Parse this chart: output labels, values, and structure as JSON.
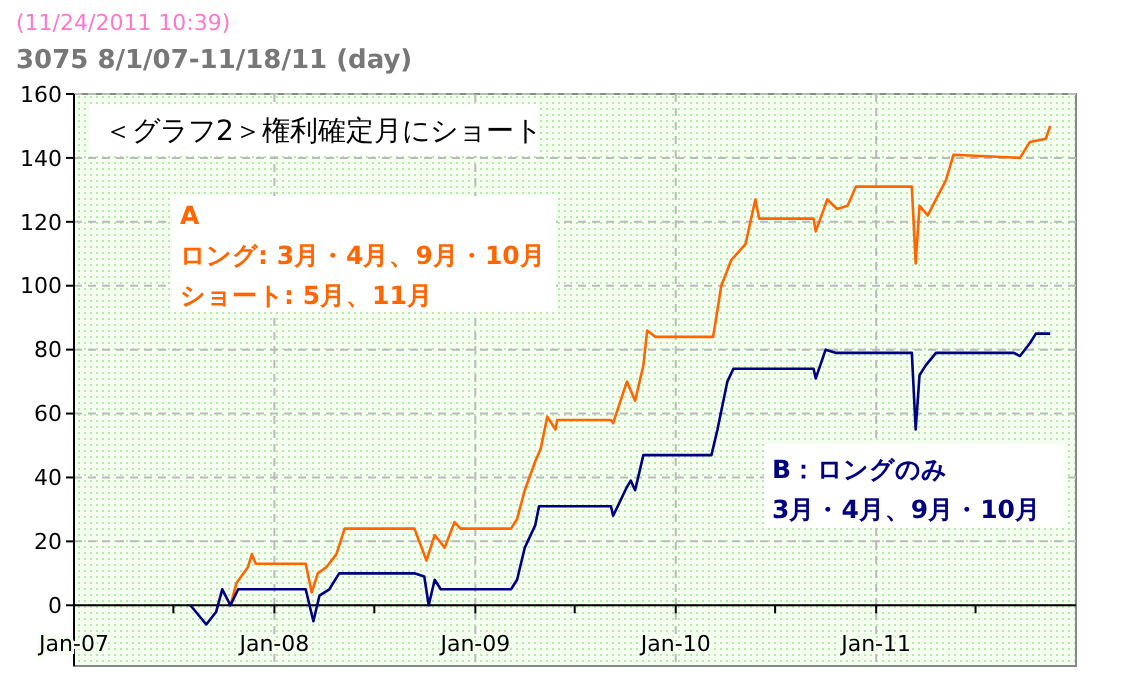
{
  "chart_data": {
    "type": "line",
    "title": "＜グラフ2＞権利確定月にショート",
    "subtitle": "3075 8/1/07-11/18/11 (day)",
    "annotations": [
      "(11/24/2011 10:39)",
      "ロング: 3月・4月、9月・10月",
      "ショート: 5月、11月",
      "3月・4月、9月・10月"
    ],
    "xlim": [
      "2007-01-01",
      "2011-12-31"
    ],
    "xticks": [
      {
        "value": "2007-01-01",
        "label": "Jan-07"
      },
      {
        "value": "2007-07-01",
        "label": null
      },
      {
        "value": "2008-01-01",
        "label": "Jan-08"
      },
      {
        "value": "2008-07-01",
        "label": null
      },
      {
        "value": "2009-01-01",
        "label": "Jan-09"
      },
      {
        "value": "2009-07-01",
        "label": null
      },
      {
        "value": "2010-01-01",
        "label": "Jan-10"
      },
      {
        "value": "2010-07-01",
        "label": null
      },
      {
        "value": "2011-01-01",
        "label": "Jan-11"
      },
      {
        "value": "2011-07-01",
        "label": null
      }
    ],
    "ylim": [
      -19,
      160
    ],
    "yticks": [
      0,
      20,
      40,
      60,
      80,
      100,
      120,
      140,
      160
    ],
    "grid": true,
    "marker": "none",
    "line_style": "solid",
    "series": [
      {
        "name": "A",
        "color": "#ff6600",
        "x": [
          "2007-10-13",
          "2007-10-24",
          "2007-11-14",
          "2007-11-21",
          "2007-11-28",
          "2008-02-27",
          "2008-03-09",
          "2008-03-20",
          "2008-04-05",
          "2008-04-23",
          "2008-05-08",
          "2008-09-12",
          "2008-10-04",
          "2008-10-19",
          "2008-11-06",
          "2008-11-24",
          "2008-12-05",
          "2009-03-07",
          "2009-03-18",
          "2009-04-01",
          "2009-04-20",
          "2009-04-30",
          "2009-05-12",
          "2009-05-27",
          "2009-05-30",
          "2009-09-05",
          "2009-09-09",
          "2009-10-04",
          "2009-10-19",
          "2009-11-03",
          "2009-11-10",
          "2009-11-25",
          "2010-03-10",
          "2010-03-25",
          "2010-04-12",
          "2010-05-08",
          "2010-05-26",
          "2010-06-02",
          "2010-09-09",
          "2010-09-13",
          "2010-10-04",
          "2010-10-22",
          "2010-11-10",
          "2010-11-25",
          "2011-03-07",
          "2011-03-14",
          "2011-03-21",
          "2011-04-05",
          "2011-04-20",
          "2011-05-08",
          "2011-05-22",
          "2011-09-20",
          "2011-10-08",
          "2011-11-06",
          "2011-11-14"
        ],
        "values": [
          0,
          7,
          12,
          16,
          13,
          13,
          4,
          10,
          12,
          16,
          24,
          24,
          14,
          22,
          18,
          26,
          24,
          24,
          27,
          36,
          45,
          49,
          59,
          55,
          58,
          58,
          57,
          70,
          64,
          75,
          86,
          84,
          84,
          100,
          108,
          113,
          127,
          121,
          121,
          117,
          127,
          124,
          125,
          131,
          131,
          107,
          125,
          122,
          127,
          133,
          141,
          140,
          145,
          146,
          150
        ]
      },
      {
        "name": "B：ロングのみ",
        "color": "#000080",
        "x": [
          "2007-08-01",
          "2007-08-30",
          "2007-09-17",
          "2007-09-28",
          "2007-10-13",
          "2007-10-27",
          "2008-02-27",
          "2008-03-12",
          "2008-03-23",
          "2008-04-10",
          "2008-04-28",
          "2008-09-12",
          "2008-09-30",
          "2008-10-08",
          "2008-10-19",
          "2008-10-30",
          "2009-03-07",
          "2009-03-18",
          "2009-04-01",
          "2009-04-20",
          "2009-04-27",
          "2009-09-05",
          "2009-09-09",
          "2009-10-04",
          "2009-10-11",
          "2009-10-19",
          "2009-11-03",
          "2010-03-07",
          "2010-03-18",
          "2010-04-05",
          "2010-04-16",
          "2010-09-09",
          "2010-09-13",
          "2010-10-01",
          "2010-10-19",
          "2011-03-07",
          "2011-03-14",
          "2011-03-21",
          "2011-04-01",
          "2011-04-20",
          "2011-09-09",
          "2011-09-20",
          "2011-10-08",
          "2011-10-19",
          "2011-11-14"
        ],
        "values": [
          0,
          -6,
          -2,
          5,
          0,
          5,
          5,
          -5,
          3,
          5,
          10,
          10,
          9,
          0,
          8,
          5,
          5,
          8,
          18,
          25,
          31,
          31,
          28,
          37,
          39,
          36,
          47,
          47,
          55,
          70,
          74,
          74,
          71,
          80,
          79,
          79,
          55,
          72,
          75,
          79,
          79,
          78,
          82,
          85,
          85
        ]
      }
    ]
  }
}
